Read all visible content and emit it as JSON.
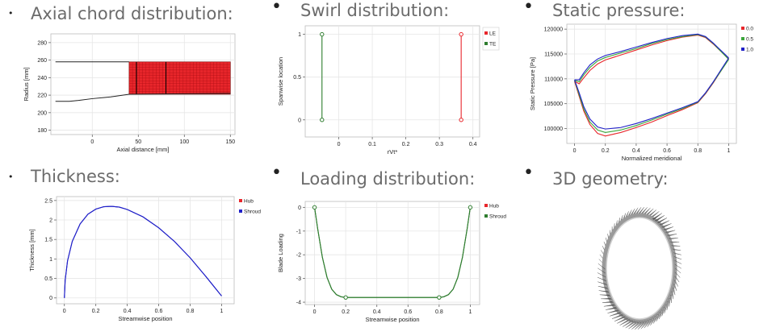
{
  "titles": {
    "axial": "Axial chord distribution:",
    "swirl": "Swirl distribution:",
    "pressure": "Static pressure:",
    "thickness": "Thickness:",
    "loading": "Loading distribution:",
    "geometry": "3D geometry:"
  },
  "colors": {
    "title": "#6b6b6b",
    "red": "#e8262b",
    "green": "#3aa63a",
    "darkgreen": "#2f7d2f",
    "blue": "#2020c8",
    "grid": "#e6e6e6"
  },
  "chart_data": [
    {
      "id": "axial",
      "type": "area",
      "title": "Axial chord distribution:",
      "xlabel": "Axial distance [mm]",
      "ylabel": "Radius [mm]",
      "xlim": [
        -45,
        155
      ],
      "ylim": [
        175,
        290
      ],
      "xticks": [
        0,
        50,
        100,
        150
      ],
      "yticks": [
        180,
        200,
        220,
        240,
        260,
        280
      ],
      "series": [
        {
          "name": "shroud",
          "x": [
            -40,
            40
          ],
          "y": [
            258,
            258
          ]
        },
        {
          "name": "hub",
          "x": [
            -40,
            -25,
            -15,
            0,
            20,
            40
          ],
          "y": [
            213,
            213,
            214,
            216,
            218,
            221
          ]
        },
        {
          "name": "blade",
          "x": [
            40,
            150
          ],
          "y_top": [
            258,
            258
          ],
          "y_bottom": [
            221,
            221
          ]
        }
      ],
      "blade_lines": [
        48,
        80
      ],
      "grid": true
    },
    {
      "id": "swirl",
      "type": "line",
      "title": "Swirl distribution:",
      "xlabel": "rVt*",
      "ylabel": "Spanwise location",
      "xlim": [
        -0.1,
        0.42
      ],
      "ylim": [
        -0.2,
        1.1
      ],
      "xticks": [
        0,
        0.1,
        0.2,
        0.3,
        0.4
      ],
      "yticks": [
        0,
        0.5,
        1
      ],
      "legend": [
        "LE",
        "TE"
      ],
      "series": [
        {
          "name": "LE",
          "x": [
            0.365,
            0.365
          ],
          "y": [
            0,
            1
          ]
        },
        {
          "name": "TE",
          "x": [
            -0.05,
            -0.05
          ],
          "y": [
            0,
            1
          ]
        }
      ],
      "grid": true
    },
    {
      "id": "pressure",
      "type": "line",
      "title": "Static pressure:",
      "xlabel": "Normalized meridional",
      "ylabel": "Static Pressure [Pa]",
      "xlim": [
        -0.05,
        1.05
      ],
      "ylim": [
        97000,
        121000
      ],
      "xticks": [
        0,
        0.2,
        0.4,
        0.6,
        0.8,
        1
      ],
      "yticks": [
        100000,
        105000,
        110000,
        115000,
        120000
      ],
      "legend": [
        "0.0",
        "0.5",
        "1.0"
      ],
      "series": [
        {
          "name": "0.0",
          "x": [
            0,
            0.03,
            0.06,
            0.1,
            0.15,
            0.2,
            0.3,
            0.4,
            0.5,
            0.6,
            0.7,
            0.8,
            0.85,
            0.9,
            1.0
          ],
          "y": [
            109500,
            109000,
            110200,
            111700,
            113000,
            113800,
            114800,
            115800,
            116800,
            117700,
            118400,
            118800,
            118300,
            117000,
            114000
          ],
          "y2": [
            109500,
            106500,
            103500,
            100800,
            99000,
            98500,
            99200,
            100200,
            101300,
            102600,
            103800,
            105200,
            107000,
            109200,
            114000
          ]
        },
        {
          "name": "0.5",
          "x": [
            0,
            0.03,
            0.06,
            0.1,
            0.15,
            0.2,
            0.3,
            0.4,
            0.5,
            0.6,
            0.7,
            0.8,
            0.85,
            0.9,
            1.0
          ],
          "y": [
            109700,
            109400,
            110800,
            112300,
            113600,
            114300,
            115200,
            116100,
            117100,
            117900,
            118500,
            118900,
            118400,
            117100,
            113900
          ],
          "y2": [
            109700,
            106800,
            103900,
            101300,
            99700,
            99200,
            99700,
            100600,
            101700,
            102900,
            104000,
            105300,
            107100,
            109300,
            113900
          ]
        },
        {
          "name": "1.0",
          "x": [
            0,
            0.03,
            0.06,
            0.1,
            0.15,
            0.2,
            0.3,
            0.4,
            0.5,
            0.6,
            0.7,
            0.8,
            0.85,
            0.9,
            1.0
          ],
          "y": [
            109800,
            109800,
            111200,
            112800,
            114000,
            114700,
            115500,
            116400,
            117300,
            118100,
            118700,
            119000,
            118500,
            117200,
            114200
          ],
          "y2": [
            109800,
            107200,
            104400,
            101900,
            100300,
            99900,
            100200,
            101000,
            102000,
            103100,
            104200,
            105400,
            107200,
            109400,
            114200
          ]
        }
      ],
      "grid": true
    },
    {
      "id": "thickness",
      "type": "line",
      "title": "Thickness:",
      "xlabel": "Streamwise position",
      "ylabel": "Thickness [mm]",
      "xlim": [
        -0.05,
        1.08
      ],
      "ylim": [
        -0.15,
        2.6
      ],
      "xticks": [
        0,
        0.2,
        0.4,
        0.6,
        0.8,
        1
      ],
      "yticks": [
        0,
        0.5,
        1,
        1.5,
        2,
        2.5
      ],
      "legend": [
        "Hub",
        "Shroud"
      ],
      "series": [
        {
          "name": "Hub",
          "x": [
            0,
            0.005,
            0.02,
            0.05,
            0.1,
            0.15,
            0.2,
            0.25,
            0.3,
            0.35,
            0.4,
            0.5,
            0.6,
            0.7,
            0.8,
            0.9,
            0.95,
            1.0
          ],
          "y": [
            0,
            0.45,
            0.95,
            1.45,
            1.9,
            2.15,
            2.28,
            2.34,
            2.35,
            2.33,
            2.27,
            2.08,
            1.8,
            1.45,
            1.03,
            0.55,
            0.3,
            0.05
          ]
        },
        {
          "name": "Shroud",
          "x": [
            0,
            0.005,
            0.02,
            0.05,
            0.1,
            0.15,
            0.2,
            0.25,
            0.3,
            0.35,
            0.4,
            0.5,
            0.6,
            0.7,
            0.8,
            0.9,
            0.95,
            1.0
          ],
          "y": [
            0,
            0.45,
            0.95,
            1.45,
            1.9,
            2.15,
            2.28,
            2.34,
            2.35,
            2.33,
            2.27,
            2.08,
            1.8,
            1.45,
            1.03,
            0.55,
            0.3,
            0.05
          ]
        }
      ],
      "grid": true
    },
    {
      "id": "loading",
      "type": "line",
      "title": "Loading distribution:",
      "xlabel": "Streamwise position",
      "ylabel": "Blade Loading",
      "xlim": [
        -0.06,
        1.06
      ],
      "ylim": [
        -4.1,
        0.25
      ],
      "xticks": [
        0,
        0.2,
        0.4,
        0.6,
        0.8,
        1
      ],
      "yticks": [
        0,
        -1,
        -2,
        -3,
        -4
      ],
      "legend": [
        "Hub",
        "Shroud"
      ],
      "markers": [
        {
          "x": 0,
          "y": 0
        },
        {
          "x": 0.2,
          "y": -3.8
        },
        {
          "x": 0.8,
          "y": -3.8
        },
        {
          "x": 1,
          "y": 0
        }
      ],
      "series": [
        {
          "name": "Hub",
          "x": [
            0,
            0.02,
            0.05,
            0.08,
            0.11,
            0.14,
            0.17,
            0.2,
            0.5,
            0.8,
            0.83,
            0.86,
            0.89,
            0.92,
            0.95,
            0.98,
            1.0
          ],
          "y": [
            0,
            -0.9,
            -2.1,
            -2.95,
            -3.45,
            -3.68,
            -3.77,
            -3.8,
            -3.8,
            -3.8,
            -3.77,
            -3.68,
            -3.45,
            -2.95,
            -2.1,
            -0.9,
            0
          ]
        },
        {
          "name": "Shroud",
          "x": [
            0,
            0.02,
            0.05,
            0.08,
            0.11,
            0.14,
            0.17,
            0.2,
            0.5,
            0.8,
            0.83,
            0.86,
            0.89,
            0.92,
            0.95,
            0.98,
            1.0
          ],
          "y": [
            0,
            -0.9,
            -2.1,
            -2.95,
            -3.45,
            -3.68,
            -3.77,
            -3.8,
            -3.8,
            -3.8,
            -3.77,
            -3.68,
            -3.45,
            -2.95,
            -2.1,
            -0.9,
            0
          ]
        }
      ],
      "grid": true
    }
  ]
}
